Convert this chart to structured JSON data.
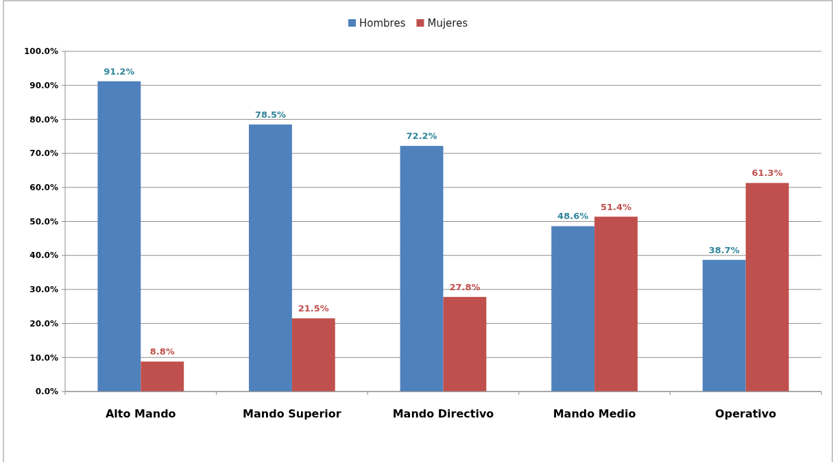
{
  "chart_data": {
    "type": "bar",
    "categories": [
      "Alto Mando",
      "Mando Superior",
      "Mando Directivo",
      "Mando Medio",
      "Operativo"
    ],
    "series": [
      {
        "name": "Hombres",
        "color": "#4f81bd",
        "values": [
          91.2,
          78.5,
          72.2,
          48.6,
          38.7
        ],
        "value_labels": [
          "91.2%",
          "78.5%",
          "72.2%",
          "48.6%",
          "38.7%"
        ]
      },
      {
        "name": "Mujeres",
        "color": "#c0504d",
        "values": [
          8.8,
          21.5,
          27.8,
          51.4,
          61.3
        ],
        "value_labels": [
          "8.8%",
          "21.5%",
          "27.8%",
          "51.4%",
          "61.3%"
        ]
      }
    ],
    "ylim": [
      0,
      100
    ],
    "yticks": [
      {
        "value": 0,
        "label": "0.0%"
      },
      {
        "value": 10,
        "label": "10.0%"
      },
      {
        "value": 20,
        "label": "20.0%"
      },
      {
        "value": 30,
        "label": "30.0%"
      },
      {
        "value": 40,
        "label": "40.0%"
      },
      {
        "value": 50,
        "label": "50.0%"
      },
      {
        "value": 60,
        "label": "60.0%"
      },
      {
        "value": 70,
        "label": "70.0%"
      },
      {
        "value": 80,
        "label": "80.0%"
      },
      {
        "value": 90,
        "label": "90.0%"
      },
      {
        "value": 100,
        "label": "100.0%"
      }
    ],
    "grid": "y",
    "legend": "top"
  }
}
